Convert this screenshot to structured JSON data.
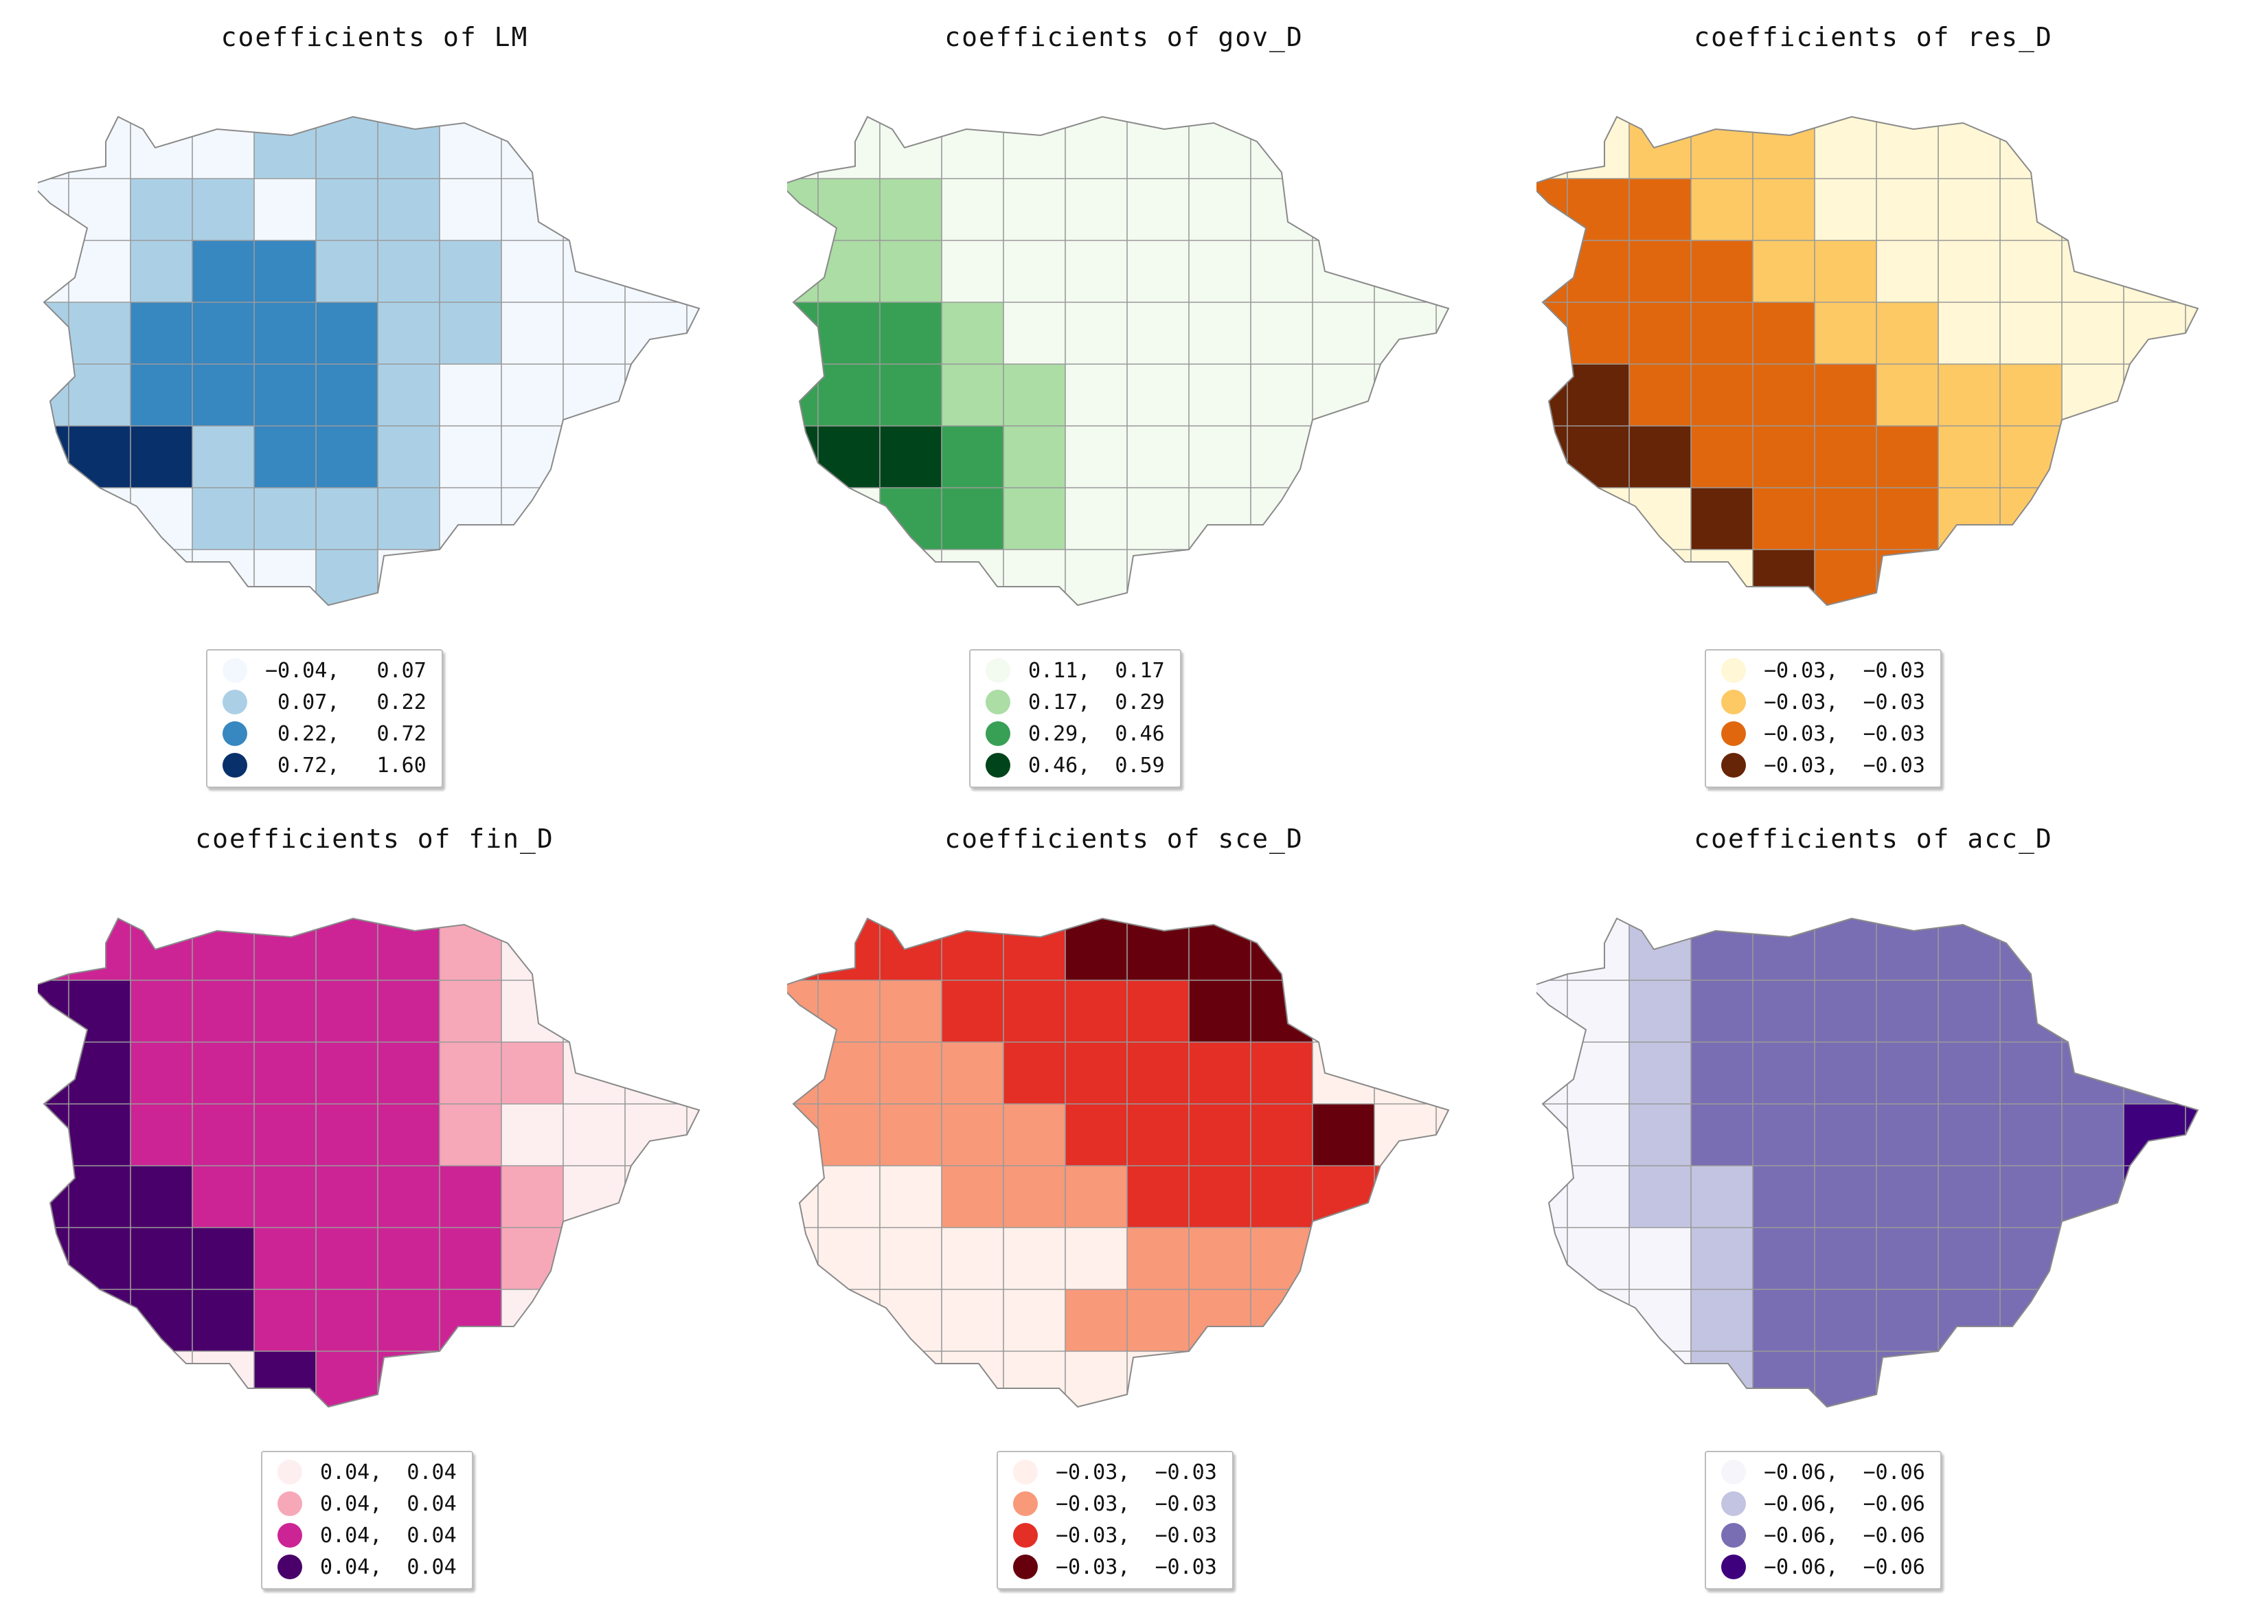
{
  "panels": [
    {
      "title": "coefficients of LM",
      "legend": [
        {
          "label": "−0.04,   0.07",
          "color": "#f3f8fe"
        },
        {
          "label": " 0.07,   0.22",
          "color": "#abd0e6"
        },
        {
          "label": " 0.22,   0.72",
          "color": "#3787c0"
        },
        {
          "label": " 0.72,   1.60",
          "color": "#08306b"
        }
      ],
      "grid": [
        "0001110000",
        "0110110000",
        "0122111000",
        "1222211000",
        "1222210000",
        "3312210000",
        "0011110000",
        "0000100000"
      ]
    },
    {
      "title": "coefficients of gov_D",
      "legend": [
        {
          "label": "0.11,  0.17",
          "color": "#f3faf0"
        },
        {
          "label": "0.17,  0.29",
          "color": "#abdda5"
        },
        {
          "label": "0.29,  0.46",
          "color": "#38a055"
        },
        {
          "label": "0.46,  0.59",
          "color": "#00441b"
        }
      ],
      "grid": [
        "0000000000",
        "1100000000",
        "1100000000",
        "2210000000",
        "2211000000",
        "3321000000",
        "0221000000",
        "0000000000"
      ]
    },
    {
      "title": "coefficients of res_D",
      "legend": [
        {
          "label": "−0.03,  −0.03",
          "color": "#fff7d5"
        },
        {
          "label": "−0.03,  −0.03",
          "color": "#fdc964"
        },
        {
          "label": "−0.03,  −0.03",
          "color": "#e0670e"
        },
        {
          "label": "−0.03,  −0.03",
          "color": "#662506"
        }
      ],
      "grid": [
        "0111000000",
        "2211000000",
        "2221100000",
        "2222110000",
        "3222211100",
        "3322221100",
        "0032221100",
        "0003220000"
      ]
    },
    {
      "title": "coefficients of fin_D",
      "legend": [
        {
          "label": "0.04,  0.04",
          "color": "#fdeff0"
        },
        {
          "label": "0.04,  0.04",
          "color": "#f7a8b8"
        },
        {
          "label": "0.04,  0.04",
          "color": "#cc2495"
        },
        {
          "label": "0.04,  0.04",
          "color": "#4a006a"
        }
      ],
      "grid": [
        "2222221000",
        "3222221000",
        "3222221100",
        "3222221000",
        "3322222100",
        "3332222100",
        "3332222000",
        "0003220000"
      ]
    },
    {
      "title": "coefficients of sce_D",
      "legend": [
        {
          "label": "−0.03,  −0.03",
          "color": "#fff0eb"
        },
        {
          "label": "−0.03,  −0.03",
          "color": "#f8997a"
        },
        {
          "label": "−0.03,  −0.03",
          "color": "#e32f26"
        },
        {
          "label": "−0.03,  −0.03",
          "color": "#67000d"
        }
      ],
      "grid": [
        "2222333300",
        "1122223300",
        "1112222200",
        "1111222230",
        "0011122222",
        "0000011110",
        "0000111100",
        "0000000000"
      ]
    },
    {
      "title": "coefficients of acc_D",
      "legend": [
        {
          "label": "−0.06,  −0.06",
          "color": "#f6f5fb"
        },
        {
          "label": "−0.06,  −0.06",
          "color": "#c3c4e1"
        },
        {
          "label": "−0.06,  −0.06",
          "color": "#796eb3"
        },
        {
          "label": "−0.06,  −0.06",
          "color": "#3f007d"
        }
      ],
      "grid": [
        "0122222222",
        "0122222222",
        "0122222222",
        "0122222223",
        "0112222223",
        "0012222222",
        "0012222222",
        "0012222000"
      ]
    }
  ]
}
